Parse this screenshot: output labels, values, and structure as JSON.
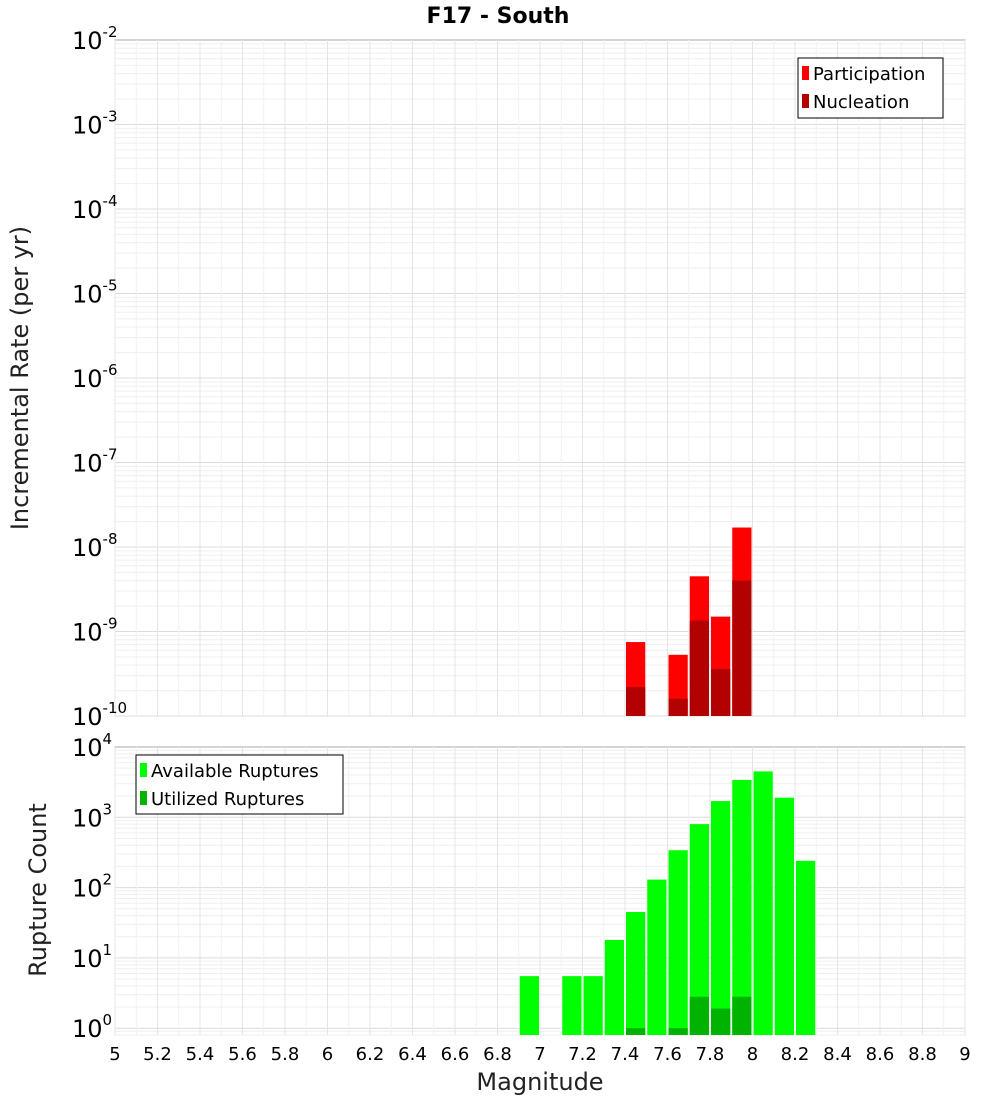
{
  "chart_data": [
    {
      "type": "bar",
      "title": "F17 - South",
      "ylabel": "Incremental Rate (per yr)",
      "xlabel": "",
      "yscale": "log",
      "ylim": [
        1e-10,
        0.01
      ],
      "xlim": [
        5,
        9
      ],
      "ytick_exponents": [
        "-2",
        "-3",
        "-4",
        "-5",
        "-6",
        "-7",
        "-8",
        "-9",
        "-10"
      ],
      "ytick_base": "10",
      "legend_position": "top-right",
      "series": [
        {
          "name": "Participation",
          "color": "#ff0000",
          "points": [
            {
              "x": 7.45,
              "y": 7.5e-10
            },
            {
              "x": 7.65,
              "y": 5.3e-10
            },
            {
              "x": 7.75,
              "y": 4.5e-09
            },
            {
              "x": 7.85,
              "y": 1.5e-09
            },
            {
              "x": 7.95,
              "y": 1.7e-08
            }
          ]
        },
        {
          "name": "Nucleation",
          "color": "#b30000",
          "points": [
            {
              "x": 7.45,
              "y": 2.2e-10
            },
            {
              "x": 7.65,
              "y": 1.6e-10
            },
            {
              "x": 7.75,
              "y": 1.35e-09
            },
            {
              "x": 7.85,
              "y": 3.6e-10
            },
            {
              "x": 7.95,
              "y": 4e-09
            }
          ]
        }
      ]
    },
    {
      "type": "bar",
      "title": "",
      "ylabel": "Rupture Count",
      "xlabel": "Magnitude",
      "yscale": "log",
      "ylim": [
        0.8,
        10000.0
      ],
      "xlim": [
        5,
        9
      ],
      "ytick_exponents": [
        "4",
        "3",
        "2",
        "1",
        "0"
      ],
      "ytick_base": "10",
      "xticks": [
        "5",
        "5.2",
        "5.4",
        "5.6",
        "5.8",
        "6",
        "6.2",
        "6.4",
        "6.6",
        "6.8",
        "7",
        "7.2",
        "7.4",
        "7.6",
        "7.8",
        "8",
        "8.2",
        "8.4",
        "8.6",
        "8.8",
        "9"
      ],
      "legend_position": "top-left",
      "series": [
        {
          "name": "Available Ruptures",
          "color": "#00ff00",
          "points": [
            {
              "x": 6.95,
              "y": 5.5
            },
            {
              "x": 7.15,
              "y": 5.5
            },
            {
              "x": 7.25,
              "y": 5.5
            },
            {
              "x": 7.35,
              "y": 18
            },
            {
              "x": 7.45,
              "y": 45
            },
            {
              "x": 7.55,
              "y": 130
            },
            {
              "x": 7.65,
              "y": 340
            },
            {
              "x": 7.75,
              "y": 800
            },
            {
              "x": 7.85,
              "y": 1700
            },
            {
              "x": 7.95,
              "y": 3400
            },
            {
              "x": 8.05,
              "y": 4500
            },
            {
              "x": 8.15,
              "y": 1900
            },
            {
              "x": 8.25,
              "y": 240
            }
          ]
        },
        {
          "name": "Utilized Ruptures",
          "color": "#00b300",
          "points": [
            {
              "x": 7.45,
              "y": 1
            },
            {
              "x": 7.65,
              "y": 1
            },
            {
              "x": 7.75,
              "y": 2.8
            },
            {
              "x": 7.85,
              "y": 1.9
            },
            {
              "x": 7.95,
              "y": 2.8
            }
          ]
        }
      ]
    }
  ]
}
